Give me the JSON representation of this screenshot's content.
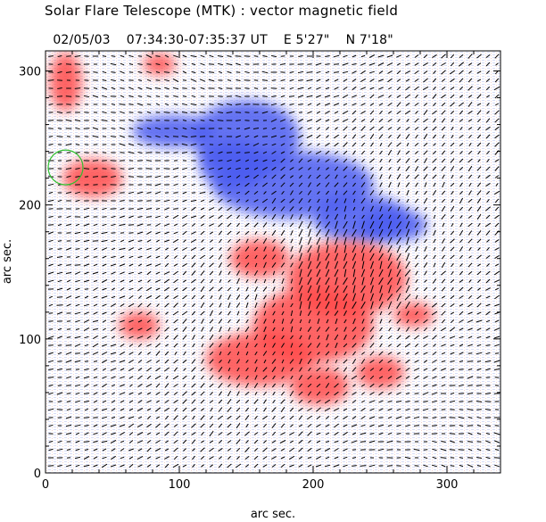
{
  "header": {
    "title": "Solar Flare Telescope (MTK) : vector magnetic field",
    "date": "02/05/03",
    "time_range": "07:34:30-07:35:37 UT",
    "longitude": "E 5'27\"",
    "latitude": "N 7'18\""
  },
  "chart_data": {
    "type": "heatmap",
    "xlabel": "arc sec.",
    "ylabel": "arc sec.",
    "xlim": [
      0,
      340
    ],
    "ylim": [
      0,
      315
    ],
    "x_ticks": [
      0,
      100,
      200,
      300
    ],
    "y_ticks": [
      0,
      100,
      200,
      300
    ],
    "grid": false,
    "legend": "none",
    "colors": {
      "positive_polarity": "#ff4a4a",
      "negative_polarity": "#4a5cf0",
      "background": "#ffffff",
      "vectors": "#000000",
      "marker_circle": "#2fbf2f"
    },
    "negative_regions": [
      {
        "x": 95,
        "y": 255,
        "rx": 30,
        "ry": 12
      },
      {
        "x": 150,
        "y": 250,
        "rx": 40,
        "ry": 28
      },
      {
        "x": 185,
        "y": 215,
        "rx": 60,
        "ry": 25
      },
      {
        "x": 235,
        "y": 190,
        "rx": 35,
        "ry": 18
      },
      {
        "x": 260,
        "y": 185,
        "rx": 25,
        "ry": 12
      },
      {
        "x": 140,
        "y": 230,
        "rx": 25,
        "ry": 18
      }
    ],
    "positive_regions": [
      {
        "x": 35,
        "y": 220,
        "rx": 22,
        "ry": 14
      },
      {
        "x": 15,
        "y": 292,
        "rx": 12,
        "ry": 22
      },
      {
        "x": 85,
        "y": 305,
        "rx": 12,
        "ry": 8
      },
      {
        "x": 160,
        "y": 160,
        "rx": 22,
        "ry": 14
      },
      {
        "x": 225,
        "y": 145,
        "rx": 45,
        "ry": 28
      },
      {
        "x": 200,
        "y": 110,
        "rx": 45,
        "ry": 28
      },
      {
        "x": 160,
        "y": 85,
        "rx": 40,
        "ry": 20
      },
      {
        "x": 70,
        "y": 110,
        "rx": 15,
        "ry": 10
      },
      {
        "x": 275,
        "y": 118,
        "rx": 15,
        "ry": 9
      },
      {
        "x": 250,
        "y": 75,
        "rx": 18,
        "ry": 12
      },
      {
        "x": 205,
        "y": 65,
        "rx": 22,
        "ry": 14
      }
    ],
    "marker_circle": {
      "x": 15,
      "y": 228,
      "r": 13
    }
  }
}
